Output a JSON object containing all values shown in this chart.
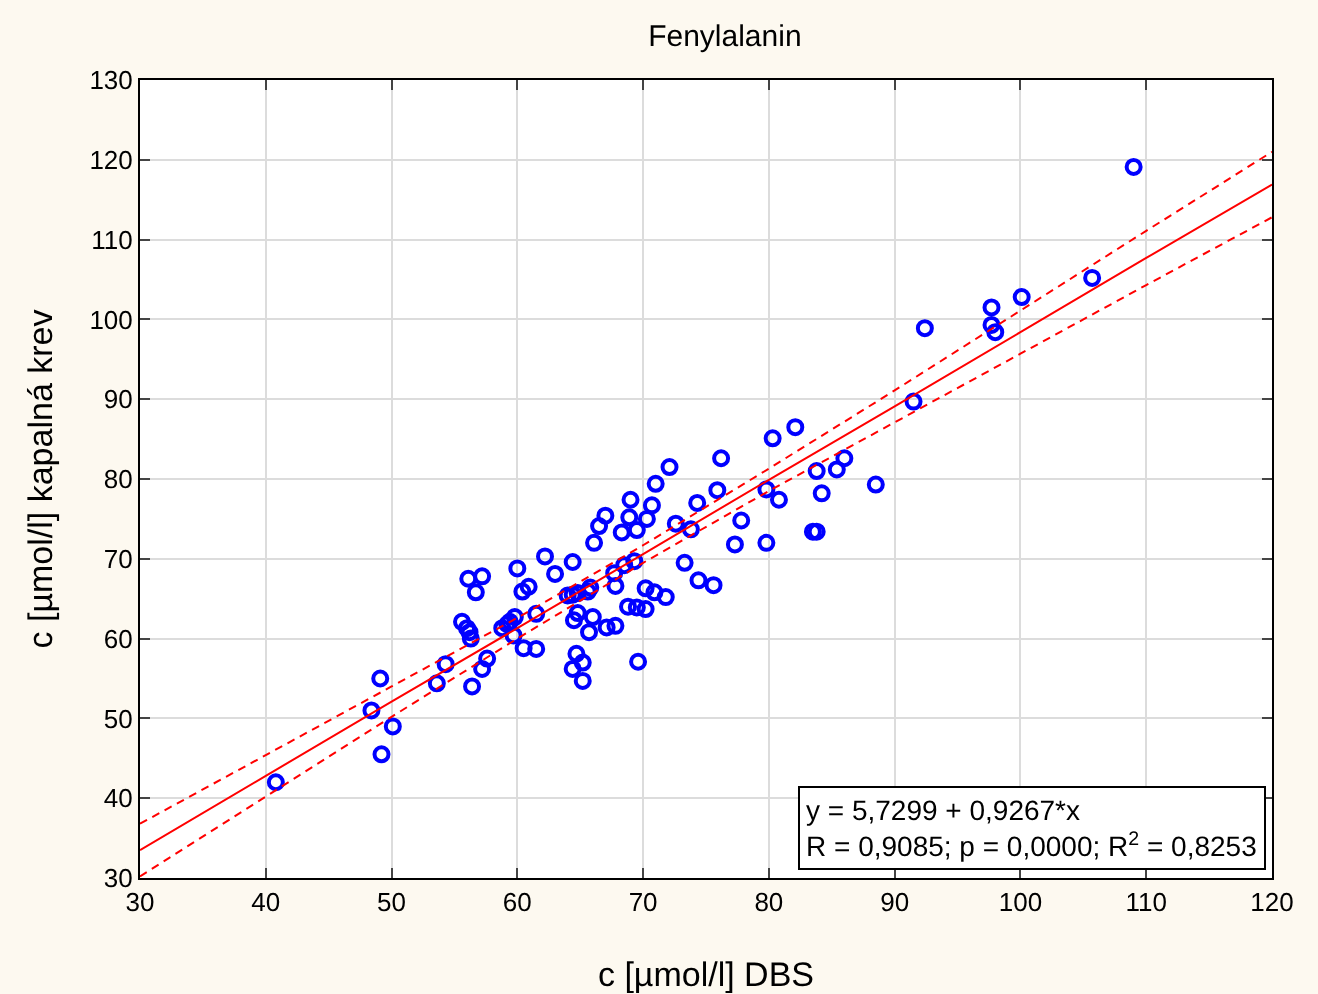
{
  "chart_data": {
    "type": "scatter",
    "title": "Fenylalanin",
    "xlabel": "c [µmol/l] DBS",
    "ylabel": "c [µmol/l] kapalná krev",
    "xlim": [
      30,
      120
    ],
    "xticks": [
      30,
      40,
      50,
      60,
      70,
      80,
      90,
      100,
      110,
      120
    ],
    "ylim": [
      30,
      130
    ],
    "yticks": [
      30,
      40,
      50,
      60,
      70,
      80,
      90,
      100,
      110,
      120,
      130
    ],
    "grid": true,
    "marker": "circle",
    "annotations": [
      "y = 5,7299 + 0,9267*x",
      "R = 0,9085; p = 0,0000; R$^{2}$ = 0,8253"
    ],
    "series": [
      {
        "color": "#0000ff",
        "x": [
          40.8,
          49.2,
          50.1,
          48.4,
          49.1,
          53.6,
          54.3,
          56.4,
          57.2,
          57.6,
          55.6,
          56.0,
          56.2,
          56.3,
          56.1,
          57.2,
          56.7,
          60.0,
          60.4,
          60.9,
          62.2,
          63.0,
          64.4,
          58.8,
          59.2,
          59.4,
          59.8,
          59.7,
          60.5,
          61.5,
          61.5,
          64.0,
          64.4,
          64.8,
          64.5,
          64.8,
          64.4,
          64.7,
          65.2,
          65.2,
          65.6,
          65.8,
          66.0,
          65.7,
          66.1,
          66.5,
          67.0,
          67.7,
          67.8,
          68.5,
          69.3,
          68.3,
          68.9,
          69.0,
          69.5,
          70.3,
          70.7,
          71.0,
          72.1,
          67.1,
          67.8,
          68.8,
          69.5,
          70.2,
          70.2,
          70.9,
          71.8,
          69.6,
          72.6,
          73.8,
          74.3,
          75.9,
          76.2,
          73.3,
          74.4,
          75.6,
          77.8,
          77.3,
          79.8,
          79.8,
          80.8,
          80.3,
          82.1,
          83.5,
          83.8,
          83.8,
          84.2,
          85.4,
          86.0,
          88.5,
          109.0,
          105.7,
          92.4,
          97.7,
          97.7,
          98.0,
          100.1,
          91.5
        ],
        "values": [
          42,
          45.5,
          49,
          51,
          55,
          54.4,
          56.8,
          54,
          56.2,
          57.5,
          62.1,
          61.3,
          60.8,
          60,
          67.5,
          67.8,
          65.8,
          68.8,
          65.9,
          66.5,
          70.3,
          68.1,
          69.6,
          61.3,
          61.8,
          62.1,
          62.7,
          60.4,
          58.8,
          58.7,
          63.1,
          65.4,
          65.5,
          65.7,
          62.3,
          63.2,
          56.2,
          58.1,
          57,
          54.7,
          65.9,
          66.4,
          62.7,
          60.8,
          72,
          74.1,
          75.4,
          68.2,
          66.6,
          69.2,
          69.7,
          73.3,
          75.2,
          77.4,
          73.6,
          75,
          76.7,
          79.4,
          81.5,
          61.4,
          61.6,
          64,
          63.9,
          63.7,
          66.3,
          65.8,
          65.2,
          57.1,
          74.4,
          73.7,
          77,
          78.6,
          82.6,
          69.5,
          67.3,
          66.7,
          74.8,
          71.8,
          72,
          78.7,
          77.4,
          85.1,
          86.5,
          73.4,
          73.4,
          81,
          78.2,
          81.2,
          82.6,
          79.3,
          119.1,
          105.2,
          98.9,
          101.5,
          99.3,
          98.4,
          102.8,
          89.7
        ]
      },
      {
        "type": "line",
        "color": "#ff0000",
        "marker": "none",
        "line_style": "solid",
        "x": [
          30,
          40,
          50,
          60,
          70,
          80,
          90,
          100,
          110,
          120
        ],
        "values": [
          33.5,
          42.8,
          52.1,
          61.3,
          70.6,
          79.9,
          89.1,
          98.4,
          107.7,
          116.9
        ]
      },
      {
        "type": "line",
        "color": "#ff0000",
        "marker": "none",
        "line_style": "dashed",
        "x": [
          30,
          40,
          50,
          60,
          70,
          80,
          90,
          100,
          110,
          120
        ],
        "values": [
          30.2,
          40.2,
          50.2,
          60.0,
          69.5,
          78.5,
          87.1,
          95.7,
          104.3,
          112.8
        ]
      },
      {
        "type": "line",
        "color": "#ff0000",
        "marker": "none",
        "line_style": "dashed",
        "x": [
          30,
          40,
          50,
          60,
          70,
          80,
          90,
          100,
          110,
          120
        ],
        "values": [
          36.8,
          45.4,
          54.0,
          62.6,
          71.7,
          81.3,
          91.1,
          101.1,
          111.1,
          121.0
        ]
      }
    ]
  }
}
